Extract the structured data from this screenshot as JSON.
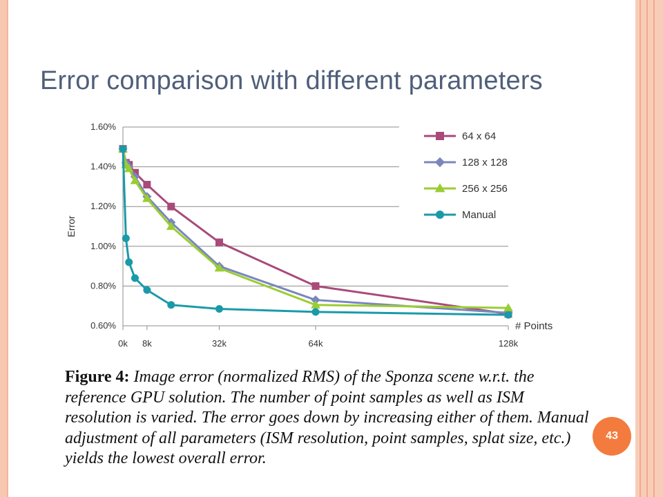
{
  "slide": {
    "title": "Error comparison with different parameters",
    "page_number": "43"
  },
  "caption": {
    "figure_label": "Figure 4:",
    "text": "Image error (normalized RMS) of the Sponza scene w.r.t. the reference GPU solution. The number of point samples as well as ISM resolution is varied. The error goes down by increasing either of them. Manual adjustment of all parameters (ISM resolution, point samples, splat size, etc.) yields the lowest overall error."
  },
  "chart_data": {
    "type": "line",
    "title": "",
    "xlabel": "# Points",
    "ylabel": "Error",
    "xlim": [
      0,
      128
    ],
    "ylim": [
      0.6,
      1.6
    ],
    "x_ticks": [
      {
        "value": 0,
        "label": "0k"
      },
      {
        "value": 8,
        "label": "8k"
      },
      {
        "value": 32,
        "label": "32k"
      },
      {
        "value": 64,
        "label": "64k"
      },
      {
        "value": 128,
        "label": "128k"
      }
    ],
    "y_ticks": [
      {
        "value": 0.6,
        "label": "0.60%"
      },
      {
        "value": 0.8,
        "label": "0.80%"
      },
      {
        "value": 1.0,
        "label": "1.00%"
      },
      {
        "value": 1.2,
        "label": "1.20%"
      },
      {
        "value": 1.4,
        "label": "1.40%"
      },
      {
        "value": 1.6,
        "label": "1.60%"
      }
    ],
    "grid": "horizontal",
    "legend_position": "top-right",
    "series": [
      {
        "name": "64 x 64",
        "color": "#a84a7a",
        "marker": "square",
        "x": [
          0,
          1,
          2,
          4,
          8,
          16,
          32,
          64,
          128
        ],
        "y": [
          1.49,
          1.42,
          1.41,
          1.37,
          1.31,
          1.2,
          1.02,
          0.8,
          0.66
        ]
      },
      {
        "name": "128 x 128",
        "color": "#7b86bd",
        "marker": "diamond",
        "x": [
          0,
          1,
          2,
          4,
          8,
          16,
          32,
          64,
          128
        ],
        "y": [
          1.49,
          1.42,
          1.4,
          1.35,
          1.25,
          1.12,
          0.9,
          0.73,
          0.665
        ]
      },
      {
        "name": "256 x 256",
        "color": "#9acd32",
        "marker": "triangle",
        "x": [
          0,
          1,
          2,
          4,
          8,
          16,
          32,
          64,
          128
        ],
        "y": [
          1.49,
          1.41,
          1.39,
          1.33,
          1.24,
          1.1,
          0.89,
          0.705,
          0.69
        ]
      },
      {
        "name": "Manual",
        "color": "#1a9aa8",
        "marker": "circle",
        "x": [
          0,
          1,
          2,
          4,
          8,
          16,
          32,
          64,
          128
        ],
        "y": [
          1.49,
          1.04,
          0.92,
          0.84,
          0.78,
          0.705,
          0.685,
          0.67,
          0.655
        ]
      }
    ]
  }
}
